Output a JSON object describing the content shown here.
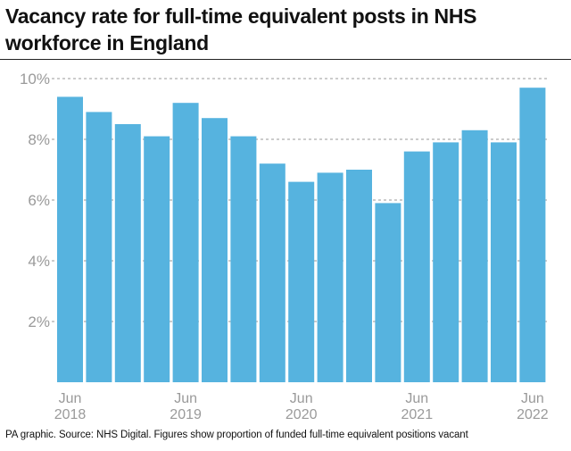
{
  "title": "Vacancy rate for full-time equivalent posts in NHS workforce in England",
  "footer": "PA graphic. Source: NHS Digital. Figures show proportion of funded full-time equivalent positions vacant",
  "colors": {
    "bar": "#56b3df",
    "grid": "#9a9a9a",
    "text": "#111111",
    "tick": "#9a9a9a"
  },
  "chart_data": {
    "type": "bar",
    "title": "Vacancy rate for full-time equivalent posts in NHS workforce in England",
    "xlabel": "",
    "ylabel": "",
    "ylim": [
      0,
      10
    ],
    "yticks": [
      2,
      4,
      6,
      8,
      10
    ],
    "ytick_labels": [
      "2%",
      "4%",
      "6%",
      "8%",
      "10%"
    ],
    "grid": "horizontal dashed",
    "x_tick_labels": [
      {
        "index": 0,
        "line1": "Jun",
        "line2": "2018"
      },
      {
        "index": 4,
        "line1": "Jun",
        "line2": "2019"
      },
      {
        "index": 8,
        "line1": "Jun",
        "line2": "2020"
      },
      {
        "index": 12,
        "line1": "Jun",
        "line2": "2021"
      },
      {
        "index": 16,
        "line1": "Jun",
        "line2": "2022"
      }
    ],
    "values": [
      9.4,
      8.9,
      8.5,
      8.1,
      9.2,
      8.7,
      8.1,
      7.2,
      6.6,
      6.9,
      7.0,
      5.9,
      7.6,
      7.9,
      8.3,
      7.9,
      9.7
    ]
  }
}
